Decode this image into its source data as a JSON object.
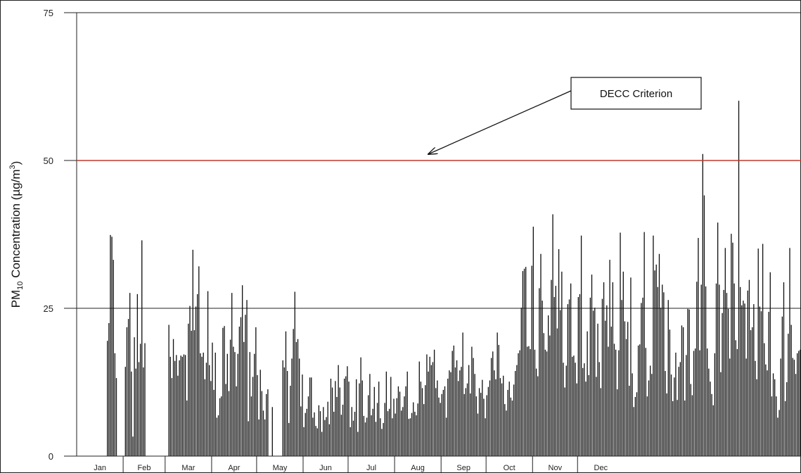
{
  "chart_data": {
    "type": "bar",
    "ylabel_main": "PM",
    "ylabel_sub": "10",
    "ylabel_rest": " Concentration (µg/m",
    "ylabel_sup": "3",
    "ylabel_end": ")",
    "ylim": [
      0,
      75
    ],
    "yticks": [
      "0",
      "25",
      "50",
      "75"
    ],
    "grid": "horizontal at 25",
    "months": [
      "Jan",
      "Feb",
      "Mar",
      "Apr",
      "May",
      "Jun",
      "Jul",
      "Aug",
      "Sep",
      "Oct",
      "Nov",
      "Dec"
    ],
    "month_days": [
      31,
      28,
      31,
      30,
      31,
      30,
      31,
      31,
      30,
      31,
      30,
      31
    ],
    "criterion": {
      "label": "DECC Criterion",
      "value": 50,
      "color": "#c0392b"
    },
    "bar_color": "#111111",
    "daily_values": [
      null,
      null,
      null,
      null,
      null,
      null,
      null,
      null,
      null,
      null,
      null,
      null,
      null,
      null,
      null,
      null,
      null,
      null,
      null,
      null,
      19.5,
      22.5,
      37.4,
      37.1,
      33.2,
      17.4,
      13.2,
      null,
      null,
      null,
      null,
      null,
      15.1,
      21.8,
      23.2,
      27.6,
      14.3,
      3.3,
      20.1,
      14.8,
      27.4,
      15.9,
      19.0,
      36.5,
      15.0,
      19.1,
      null,
      null,
      null,
      null,
      null,
      null,
      null,
      null,
      null,
      null,
      null,
      null,
      null,
      null,
      null,
      22.2,
      16.8,
      13.2,
      19.8,
      16.1,
      17.1,
      13.6,
      16.2,
      17.0,
      16.8,
      17.2,
      17.1,
      9.4,
      22.4,
      25.4,
      21.2,
      34.9,
      21.3,
      25.3,
      27.4,
      32.1,
      17.4,
      16.8,
      17.5,
      13.0,
      15.8,
      27.9,
      15.4,
      12.7,
      19.2,
      11.2,
      17.5,
      6.5,
      6.9,
      9.8,
      10.1,
      21.7,
      22.0,
      12.2,
      17.3,
      11.0,
      19.7,
      27.6,
      18.5,
      17.6,
      11.8,
      17.3,
      21.9,
      23.5,
      28.9,
      19.3,
      23.9,
      26.4,
      5.9,
      17.6,
      10.1,
      13.4,
      17.3,
      21.8,
      13.7,
      6.2,
      14.6,
      11.0,
      7.7,
      6.2,
      10.5,
      11.3,
      null,
      null,
      8.3,
      null,
      null,
      null,
      null,
      null,
      null,
      16.2,
      15.0,
      21.1,
      14.4,
      5.6,
      11.9,
      16.5,
      21.5,
      27.8,
      19.3,
      19.8,
      16.5,
      8.4,
      13.8,
      4.9,
      7.3,
      8.0,
      10.1,
      13.3,
      13.3,
      6.5,
      7.4,
      5.1,
      4.7,
      8.6,
      7.6,
      4.1,
      8.3,
      6.1,
      6.6,
      9.2,
      5.4,
      13.1,
      11.6,
      7.5,
      12.7,
      10.0,
      15.4,
      11.6,
      7.0,
      8.7,
      13.1,
      13.5,
      15.2,
      12.6,
      4.9,
      8.3,
      6.0,
      7.5,
      13.0,
      4.1,
      12.3,
      16.7,
      12.8,
      6.8,
      5.7,
      6.5,
      10.3,
      13.9,
      6.9,
      8.0,
      11.7,
      5.8,
      9.0,
      12.6,
      6.4,
      4.6,
      5.6,
      9.0,
      14.3,
      7.6,
      8.0,
      13.4,
      6.4,
      9.7,
      7.2,
      9.8,
      11.8,
      10.9,
      7.7,
      8.3,
      10.1,
      11.8,
      14.3,
      6.3,
      6.4,
      7.3,
      9.1,
      7.5,
      6.9,
      8.9,
      16.0,
      12.6,
      11.5,
      8.8,
      12.0,
      17.2,
      14.3,
      16.8,
      15.4,
      15.9,
      18.0,
      11.5,
      12.8,
      9.9,
      9.0,
      10.5,
      11.2,
      11.8,
      6.5,
      13.1,
      14.5,
      14.2,
      17.8,
      18.7,
      15.0,
      16.2,
      12.7,
      14.5,
      15.1,
      20.9,
      10.5,
      11.5,
      12.3,
      15.4,
      10.6,
      18.5,
      16.6,
      13.9,
      10.1,
      7.2,
      11.5,
      10.7,
      12.9,
      9.7,
      6.4,
      10.3,
      11.7,
      12.8,
      16.6,
      17.7,
      14.5,
      13.0,
      20.9,
      18.8,
      13.2,
      12.3,
      13.6,
      8.8,
      7.7,
      11.2,
      12.6,
      9.9,
      9.4,
      12.1,
      14.4,
      15.4,
      17.4,
      17.9,
      25.1,
      31.3,
      31.7,
      32.0,
      18.5,
      18.6,
      18.1,
      32.2,
      38.8,
      18.0,
      14.8,
      13.5,
      28.4,
      34.2,
      26.3,
      20.8,
      18.0,
      17.7,
      23.8,
      20.4,
      29.8,
      40.9,
      26.9,
      28.8,
      21.6,
      35.0,
      24.7,
      31.2,
      15.8,
      11.6,
      15.3,
      25.7,
      26.5,
      29.2,
      16.8,
      17.0,
      15.8,
      12.3,
      26.9,
      27.4,
      37.3,
      14.9,
      15.7,
      12.6,
      21.1,
      13.7,
      26.8,
      30.7,
      24.6,
      25.1,
      13.4,
      22.4,
      15.9,
      11.5,
      26.6,
      29.4,
      22.9,
      25.5,
      18.5,
      33.2,
      21.9,
      29.4,
      19.0,
      18.0,
      11.3,
      17.9,
      37.8,
      26.4,
      31.2,
      22.8,
      19.8,
      22.7,
      11.9,
      30.2,
      14.0,
      8.3,
      10.0,
      10.8,
      18.7,
      18.9,
      25.9,
      26.8,
      37.9,
      18.3,
      10.1,
      12.8,
      15.3,
      13.9,
      37.3,
      31.4,
      32.4,
      28.6,
      34.2,
      25.1,
      29.0,
      27.7,
      14.4,
      10.6,
      26.4,
      21.4,
      13.8,
      9.3,
      13.3,
      17.5,
      9.5,
      15.1,
      15.9,
      22.1,
      21.8,
      9.4,
      17.1,
      24.9,
      24.8,
      12.2,
      10.3,
      17.8,
      18.2,
      29.5,
      36.9,
      17.9,
      29.0,
      51.1,
      44.1,
      28.7,
      18.2,
      14.8,
      12.6,
      10.5,
      8.6,
      17.4,
      29.2,
      39.5,
      29.0,
      14.2,
      24.2,
      28.1,
      35.2,
      27.6,
      24.9,
      16.5,
      37.6,
      36.1,
      29.2,
      19.6,
      18.1,
      60.1,
      28.6,
      25.5,
      26.3,
      25.8,
      16.5,
      28.0,
      29.8,
      21.3,
      21.8,
      25.7,
      16.1,
      13.0,
      35.1,
      25.3,
      24.5,
      35.9,
      19.1,
      15.5,
      14.5,
      24.4,
      31.1,
      10.1,
      14.0,
      13.0,
      10.1,
      6.5,
      7.8,
      16.5,
      23.6,
      29.4,
      9.3,
      12.5,
      20.7,
      35.2,
      22.2,
      16.6,
      16.3,
      13.9,
      17.4,
      17.8,
      18.0
    ]
  },
  "callout": {
    "text": "DECC Criterion"
  }
}
